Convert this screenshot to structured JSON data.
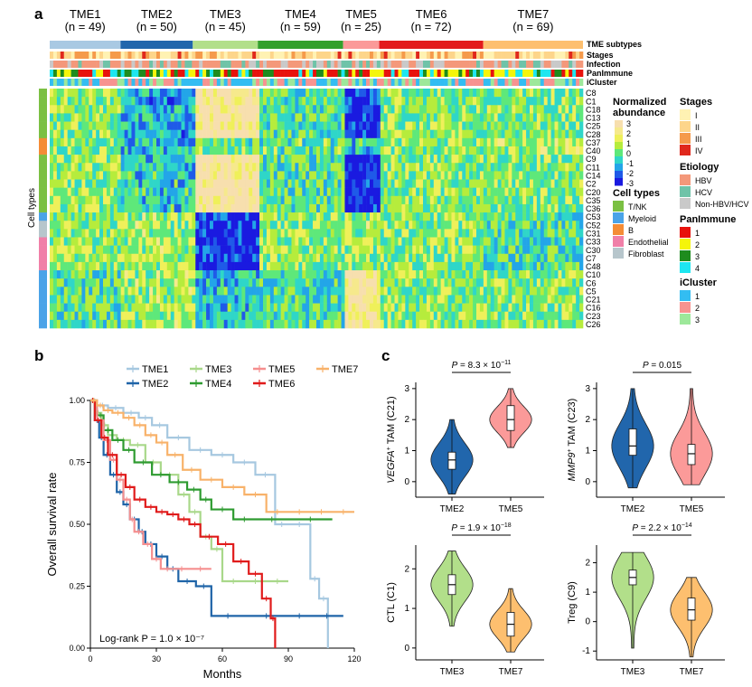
{
  "panel_a": {
    "letter": "a",
    "subtypes": [
      {
        "name": "TME1",
        "n": "(n = 49)",
        "count": 49,
        "color": "#a9c9e3"
      },
      {
        "name": "TME2",
        "n": "(n = 50)",
        "count": 50,
        "color": "#2166ac"
      },
      {
        "name": "TME3",
        "n": "(n = 45)",
        "count": 45,
        "color": "#b2df8a"
      },
      {
        "name": "TME4",
        "n": "(n = 59)",
        "count": 59,
        "color": "#33a02c"
      },
      {
        "name": "TME5",
        "n": "(n = 25)",
        "count": 25,
        "color": "#fb9a99"
      },
      {
        "name": "TME6",
        "n": "(n = 72)",
        "count": 72,
        "color": "#e31a1c"
      },
      {
        "name": "TME7",
        "n": "(n = 69)",
        "count": 69,
        "color": "#fdbf6f"
      }
    ],
    "track_labels": [
      "TME subtypes",
      "Stages",
      "Infection",
      "PanImmune",
      "iCluster"
    ],
    "row_labels": [
      "C8",
      "C1",
      "C18",
      "C13",
      "C25",
      "C28",
      "C37",
      "C40",
      "C9",
      "C11",
      "C14",
      "C2",
      "C20",
      "C35",
      "C36",
      "C53",
      "C52",
      "C31",
      "C33",
      "C30",
      "C7",
      "C48",
      "C10",
      "C6",
      "C5",
      "C21",
      "C16",
      "C23",
      "C26"
    ],
    "row_celltype_colors": [
      "#7bc043",
      "#7bc043",
      "#7bc043",
      "#7bc043",
      "#7bc043",
      "#7bc043",
      "#f48c36",
      "#f48c36",
      "#7bc043",
      "#7bc043",
      "#7bc043",
      "#7bc043",
      "#7bc043",
      "#7bc043",
      "#7bc043",
      "#4aa3e8",
      "#b7c6cc",
      "#b7c6cc",
      "#f07fa8",
      "#f07fa8",
      "#f07fa8",
      "#f07fa8",
      "#4aa3e8",
      "#4aa3e8",
      "#4aa3e8",
      "#4aa3e8",
      "#4aa3e8",
      "#4aa3e8",
      "#4aa3e8"
    ],
    "cell_types_axis_label": "Cell types",
    "abundance_legend": {
      "title_line1": "Normalized",
      "title_line2": "abundance",
      "ticks": [
        "3",
        "2",
        "1",
        "0",
        "-1",
        "-2",
        "-3"
      ]
    },
    "celltype_legend": {
      "title": "Cell types",
      "items": [
        {
          "label": "T/NK",
          "color": "#7bc043"
        },
        {
          "label": "Myeloid",
          "color": "#4aa3e8"
        },
        {
          "label": "B",
          "color": "#f48c36"
        },
        {
          "label": "Endothelial",
          "color": "#f07fa8"
        },
        {
          "label": "Fibroblast",
          "color": "#b7c6cc"
        }
      ]
    },
    "stages_legend": {
      "title": "Stages",
      "items": [
        {
          "label": "I",
          "color": "#fff2b3"
        },
        {
          "label": "II",
          "color": "#fdd58a"
        },
        {
          "label": "III",
          "color": "#f59a4b"
        },
        {
          "label": "IV",
          "color": "#e0281c"
        }
      ]
    },
    "etiology_legend": {
      "title": "Etiology",
      "items": [
        {
          "label": "HBV",
          "color": "#f4987a"
        },
        {
          "label": "HCV",
          "color": "#6fc3a8"
        },
        {
          "label": "Non-HBV/HCV",
          "color": "#c9c9c9"
        }
      ]
    },
    "panimmune_legend": {
      "title": "PanImmune",
      "items": [
        {
          "label": "1",
          "color": "#e8120c"
        },
        {
          "label": "2",
          "color": "#f5f50a"
        },
        {
          "label": "3",
          "color": "#1e8c1e"
        },
        {
          "label": "4",
          "color": "#1ee6f0"
        }
      ]
    },
    "icluster_legend": {
      "title": "iCluster",
      "items": [
        {
          "label": "1",
          "color": "#33bdf2"
        },
        {
          "label": "2",
          "color": "#f79390"
        },
        {
          "label": "3",
          "color": "#9de89a"
        }
      ]
    }
  },
  "chart_data": [
    {
      "type": "line",
      "panel": "b",
      "xlabel": "Months",
      "ylabel": "Overall survival rate",
      "xlim": [
        0,
        120
      ],
      "ylim": [
        0,
        1
      ],
      "x_ticks": [
        "0",
        "30",
        "60",
        "90",
        "120"
      ],
      "y_ticks": [
        "0.00",
        "0.25",
        "0.50",
        "0.75",
        "1.00"
      ],
      "legend_placement": "top",
      "annotation": "Log-rank P = 1.0 × 10⁻⁷",
      "series": [
        {
          "name": "TME1",
          "color": "#a6c8e0",
          "x": [
            0,
            3,
            8,
            15,
            22,
            28,
            35,
            45,
            55,
            65,
            75,
            84,
            90,
            100,
            104,
            108
          ],
          "y": [
            1.0,
            0.98,
            0.97,
            0.95,
            0.93,
            0.9,
            0.85,
            0.8,
            0.78,
            0.75,
            0.7,
            0.5,
            0.5,
            0.28,
            0.2,
            0.0
          ]
        },
        {
          "name": "TME2",
          "color": "#1f64a8",
          "x": [
            0,
            2,
            4,
            6,
            9,
            12,
            15,
            18,
            22,
            25,
            30,
            35,
            40,
            48,
            55,
            70,
            90,
            100,
            115
          ],
          "y": [
            1.0,
            0.92,
            0.85,
            0.78,
            0.7,
            0.63,
            0.58,
            0.52,
            0.47,
            0.42,
            0.37,
            0.32,
            0.27,
            0.25,
            0.13,
            0.13,
            0.13,
            0.13,
            0.13
          ]
        },
        {
          "name": "TME3",
          "color": "#a9d88a",
          "x": [
            0,
            2,
            5,
            8,
            12,
            18,
            25,
            32,
            40,
            45,
            50,
            55,
            60,
            70,
            80,
            90
          ],
          "y": [
            1.0,
            0.95,
            0.9,
            0.86,
            0.84,
            0.82,
            0.75,
            0.7,
            0.62,
            0.55,
            0.45,
            0.4,
            0.27,
            0.27,
            0.27,
            0.27
          ]
        },
        {
          "name": "TME4",
          "color": "#2e9b30",
          "x": [
            0,
            3,
            6,
            10,
            15,
            20,
            28,
            36,
            44,
            50,
            55,
            65,
            75,
            90,
            110
          ],
          "y": [
            1.0,
            0.94,
            0.88,
            0.84,
            0.8,
            0.75,
            0.7,
            0.67,
            0.64,
            0.6,
            0.56,
            0.52,
            0.52,
            0.52,
            0.52
          ]
        },
        {
          "name": "TME5",
          "color": "#f58f8f",
          "x": [
            0,
            3,
            6,
            9,
            12,
            15,
            18,
            20,
            24,
            28,
            32,
            38,
            45,
            55
          ],
          "y": [
            1.0,
            0.92,
            0.84,
            0.76,
            0.68,
            0.6,
            0.52,
            0.47,
            0.42,
            0.36,
            0.32,
            0.32,
            0.32,
            0.32
          ]
        },
        {
          "name": "TME6",
          "color": "#e01b1b",
          "x": [
            0,
            2,
            5,
            8,
            12,
            16,
            20,
            25,
            30,
            35,
            40,
            45,
            50,
            58,
            65,
            72,
            78,
            82,
            84
          ],
          "y": [
            1.0,
            0.92,
            0.85,
            0.78,
            0.7,
            0.65,
            0.6,
            0.57,
            0.55,
            0.54,
            0.52,
            0.5,
            0.45,
            0.42,
            0.35,
            0.3,
            0.2,
            0.12,
            0.0
          ]
        },
        {
          "name": "TME7",
          "color": "#f8b26a",
          "x": [
            0,
            3,
            6,
            10,
            15,
            20,
            25,
            30,
            35,
            42,
            50,
            60,
            70,
            80,
            90,
            100,
            110,
            120
          ],
          "y": [
            1.0,
            0.98,
            0.96,
            0.95,
            0.93,
            0.9,
            0.86,
            0.83,
            0.78,
            0.72,
            0.68,
            0.65,
            0.62,
            0.55,
            0.55,
            0.55,
            0.55,
            0.55
          ]
        }
      ]
    },
    {
      "type": "violin",
      "panel": "c1",
      "ylabel_italic": "VEGFA",
      "ylabel_sup": "+",
      "ylabel_rest": " TAM (C21)",
      "categories": [
        "TME2",
        "TME5"
      ],
      "colors": [
        "#2166ac",
        "#fb9a99"
      ],
      "ylim": [
        -0.5,
        3.2
      ],
      "y_ticks": [
        "0",
        "1",
        "2",
        "3"
      ],
      "median": [
        0.7,
        2.0
      ],
      "q1": [
        0.4,
        1.65
      ],
      "q3": [
        0.95,
        2.45
      ],
      "whisker_low": [
        -0.4,
        1.1
      ],
      "whisker_high": [
        2.0,
        3.0
      ],
      "p_prefix": "P",
      "p_value": " = 8.3 × 10",
      "p_exp": "−11"
    },
    {
      "type": "violin",
      "panel": "c2",
      "ylabel_italic": "MMP9",
      "ylabel_sup": "+",
      "ylabel_rest": " TAM (C23)",
      "categories": [
        "TME2",
        "TME5"
      ],
      "colors": [
        "#2166ac",
        "#fb9a99"
      ],
      "ylim": [
        -0.5,
        3.2
      ],
      "y_ticks": [
        "0",
        "1",
        "2",
        "3"
      ],
      "median": [
        1.15,
        0.9
      ],
      "q1": [
        0.85,
        0.55
      ],
      "q3": [
        1.7,
        1.2
      ],
      "whisker_low": [
        -0.2,
        -0.1
      ],
      "whisker_high": [
        3.0,
        3.0
      ],
      "p_prefix": "P",
      "p_value": " = 0.015",
      "p_exp": ""
    },
    {
      "type": "violin",
      "panel": "c3",
      "ylabel_italic": "",
      "ylabel_sup": "",
      "ylabel_rest": "CTL (C1)",
      "categories": [
        "TME3",
        "TME7"
      ],
      "colors": [
        "#b2df8a",
        "#fdbf6f"
      ],
      "ylim": [
        -0.3,
        2.6
      ],
      "y_ticks": [
        "0",
        "1",
        "2"
      ],
      "median": [
        1.6,
        0.6
      ],
      "q1": [
        1.35,
        0.3
      ],
      "q3": [
        1.85,
        0.9
      ],
      "whisker_low": [
        0.55,
        -0.1
      ],
      "whisker_high": [
        2.45,
        1.5
      ],
      "p_prefix": "P",
      "p_value": " = 1.9 × 10",
      "p_exp": "−18"
    },
    {
      "type": "violin",
      "panel": "c4",
      "ylabel_italic": "",
      "ylabel_sup": "",
      "ylabel_rest": "Treg (C9)",
      "categories": [
        "TME3",
        "TME7"
      ],
      "colors": [
        "#b2df8a",
        "#fdbf6f"
      ],
      "ylim": [
        -1.3,
        2.6
      ],
      "y_ticks": [
        "-1",
        "0",
        "1",
        "2"
      ],
      "median": [
        1.5,
        0.4
      ],
      "q1": [
        1.25,
        0.05
      ],
      "q3": [
        1.75,
        0.8
      ],
      "whisker_low": [
        -0.9,
        -1.2
      ],
      "whisker_high": [
        2.35,
        1.5
      ],
      "p_prefix": "P",
      "p_value": " = 2.2 × 10",
      "p_exp": "−14"
    }
  ],
  "panel_b_letter": "b",
  "panel_c_letter": "c"
}
